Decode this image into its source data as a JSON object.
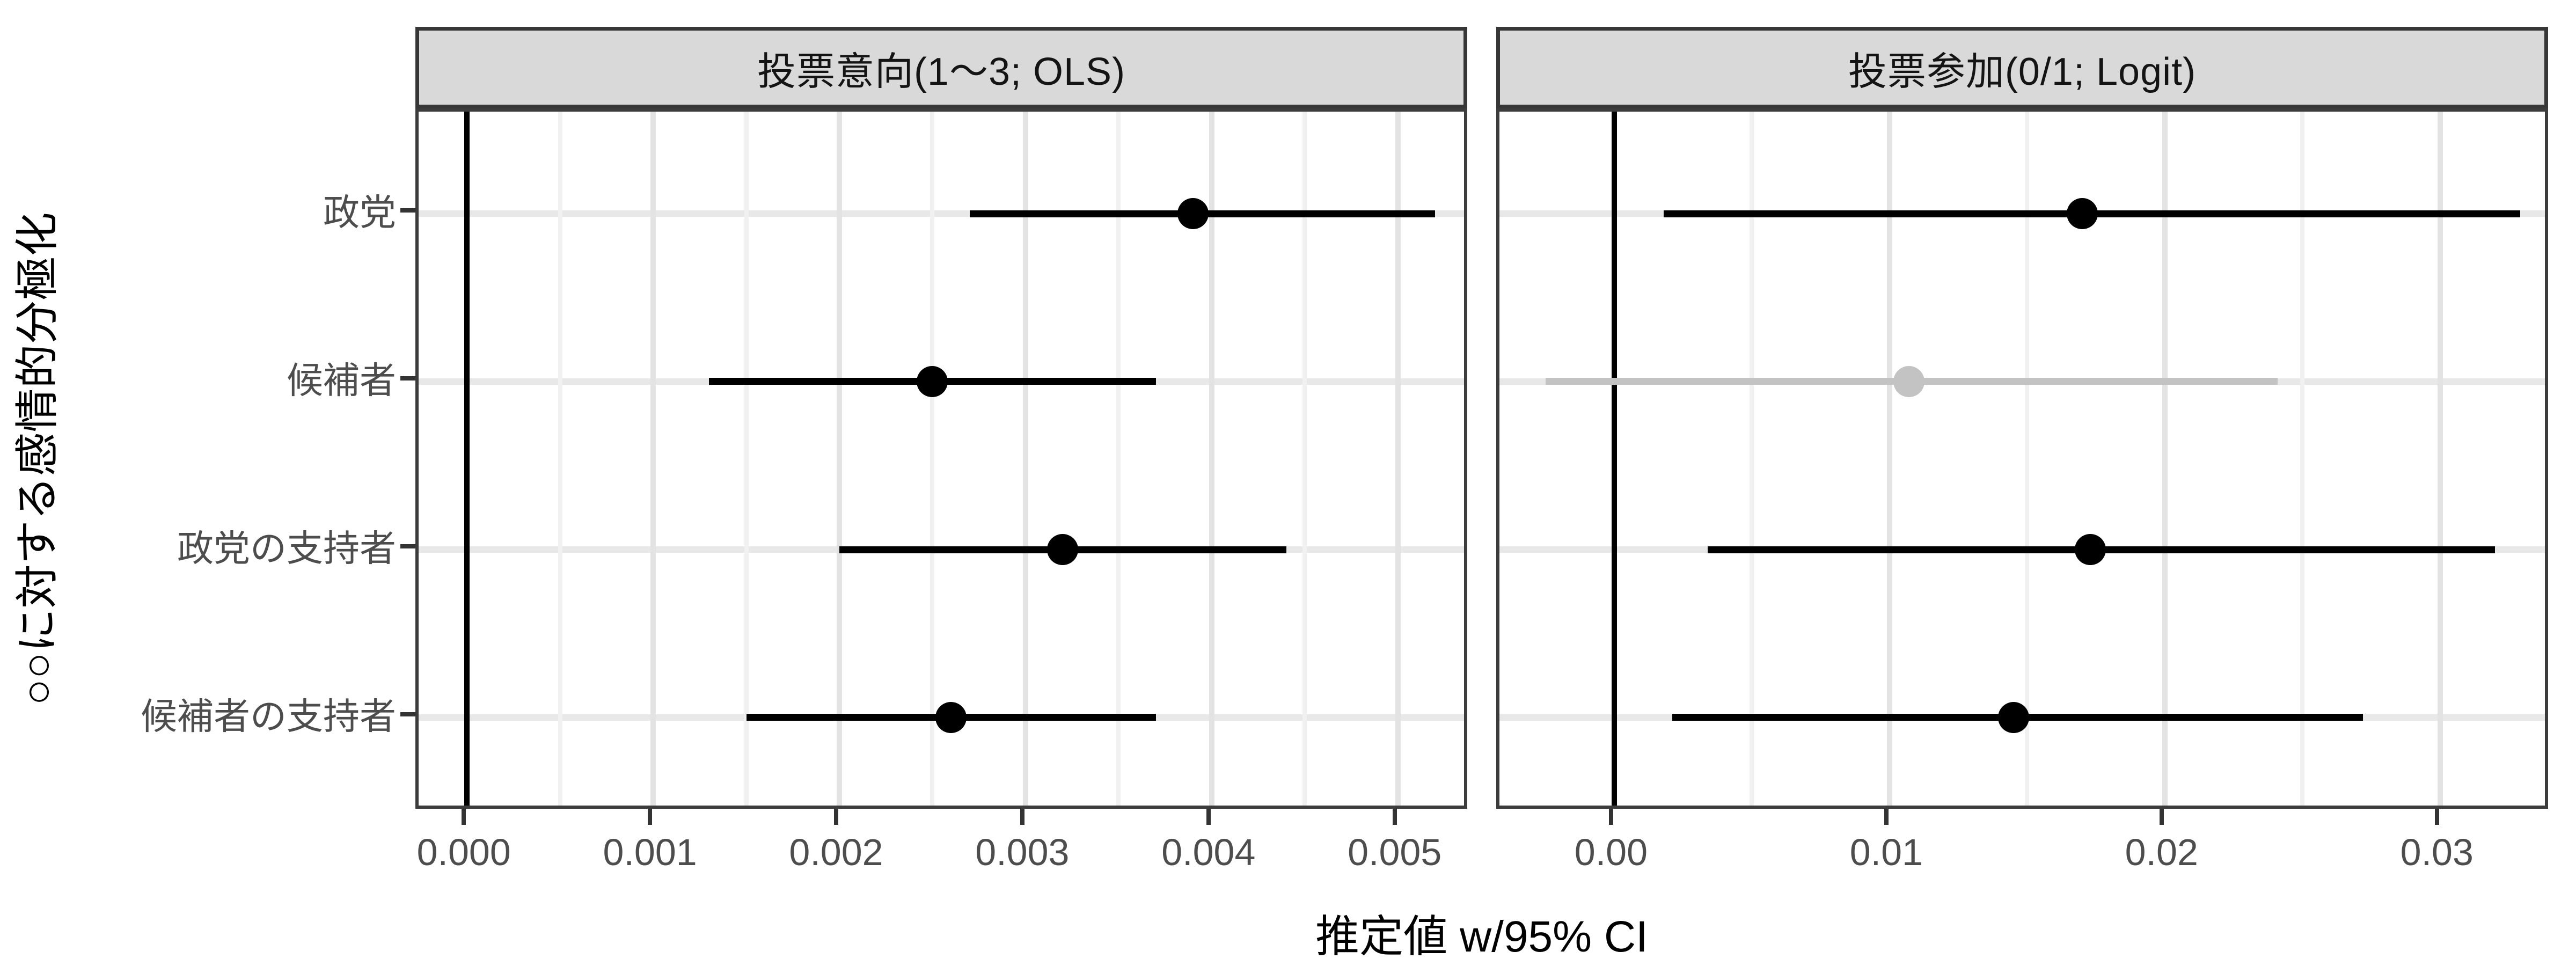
{
  "figure": {
    "x_axis_title": "推定値 w/95% CI",
    "y_axis_title": "○○に対する感情的分極化"
  },
  "chart_data": {
    "type": "scatter",
    "subtype": "coefficient-plot-with-95ci",
    "title": "",
    "xlabel": "推定値 w/95% CI",
    "ylabel": "○○に対する感情的分極化",
    "categories": [
      "政党",
      "候補者",
      "政党の支持者",
      "候補者の支持者"
    ],
    "grid": true,
    "legend": false,
    "reference_line_x": 0,
    "colors": {
      "significant": "#000000",
      "non_significant": "#c3c3c3",
      "strip_background": "#d9d9d9",
      "strip_border": "#373737",
      "panel_border": "#3c3c3c",
      "grid_major": "#e3e3e3",
      "grid_minor": "#f1f1f1",
      "tick_text": "#4d4d4d"
    },
    "facets": [
      {
        "label": "投票意向(1〜3; OLS)",
        "xlim": [
          -0.00026,
          0.00539
        ],
        "x_ticks": {
          "values": [
            0.0,
            0.001,
            0.002,
            0.003,
            0.004,
            0.005
          ],
          "labels": [
            "0.000",
            "0.001",
            "0.002",
            "0.003",
            "0.004",
            "0.005"
          ]
        },
        "x_minor": [
          0.0005,
          0.0015,
          0.0025,
          0.0035,
          0.0045
        ],
        "points": [
          {
            "category": "政党",
            "estimate": 0.0039,
            "ci_low": 0.0027,
            "ci_high": 0.0052,
            "significant": true
          },
          {
            "category": "候補者",
            "estimate": 0.0025,
            "ci_low": 0.0013,
            "ci_high": 0.0037,
            "significant": true
          },
          {
            "category": "政党の支持者",
            "estimate": 0.0032,
            "ci_low": 0.002,
            "ci_high": 0.0044,
            "significant": true
          },
          {
            "category": "候補者の支持者",
            "estimate": 0.0026,
            "ci_low": 0.0015,
            "ci_high": 0.0037,
            "significant": true
          }
        ]
      },
      {
        "label": "投票参加(0/1; Logit)",
        "xlim": [
          -0.00417,
          0.03404
        ],
        "x_ticks": {
          "values": [
            0.0,
            0.01,
            0.02,
            0.03
          ],
          "labels": [
            "0.00",
            "0.01",
            "0.02",
            "0.03"
          ]
        },
        "x_minor": [
          0.005,
          0.015,
          0.025
        ],
        "points": [
          {
            "category": "政党",
            "estimate": 0.017,
            "ci_low": 0.0018,
            "ci_high": 0.0329,
            "significant": true
          },
          {
            "category": "候補者",
            "estimate": 0.0107,
            "ci_low": -0.0025,
            "ci_high": 0.0241,
            "significant": false
          },
          {
            "category": "政党の支持者",
            "estimate": 0.0173,
            "ci_low": 0.0034,
            "ci_high": 0.032,
            "significant": true
          },
          {
            "category": "候補者の支持者",
            "estimate": 0.0145,
            "ci_low": 0.0021,
            "ci_high": 0.0272,
            "significant": true
          }
        ]
      }
    ]
  }
}
